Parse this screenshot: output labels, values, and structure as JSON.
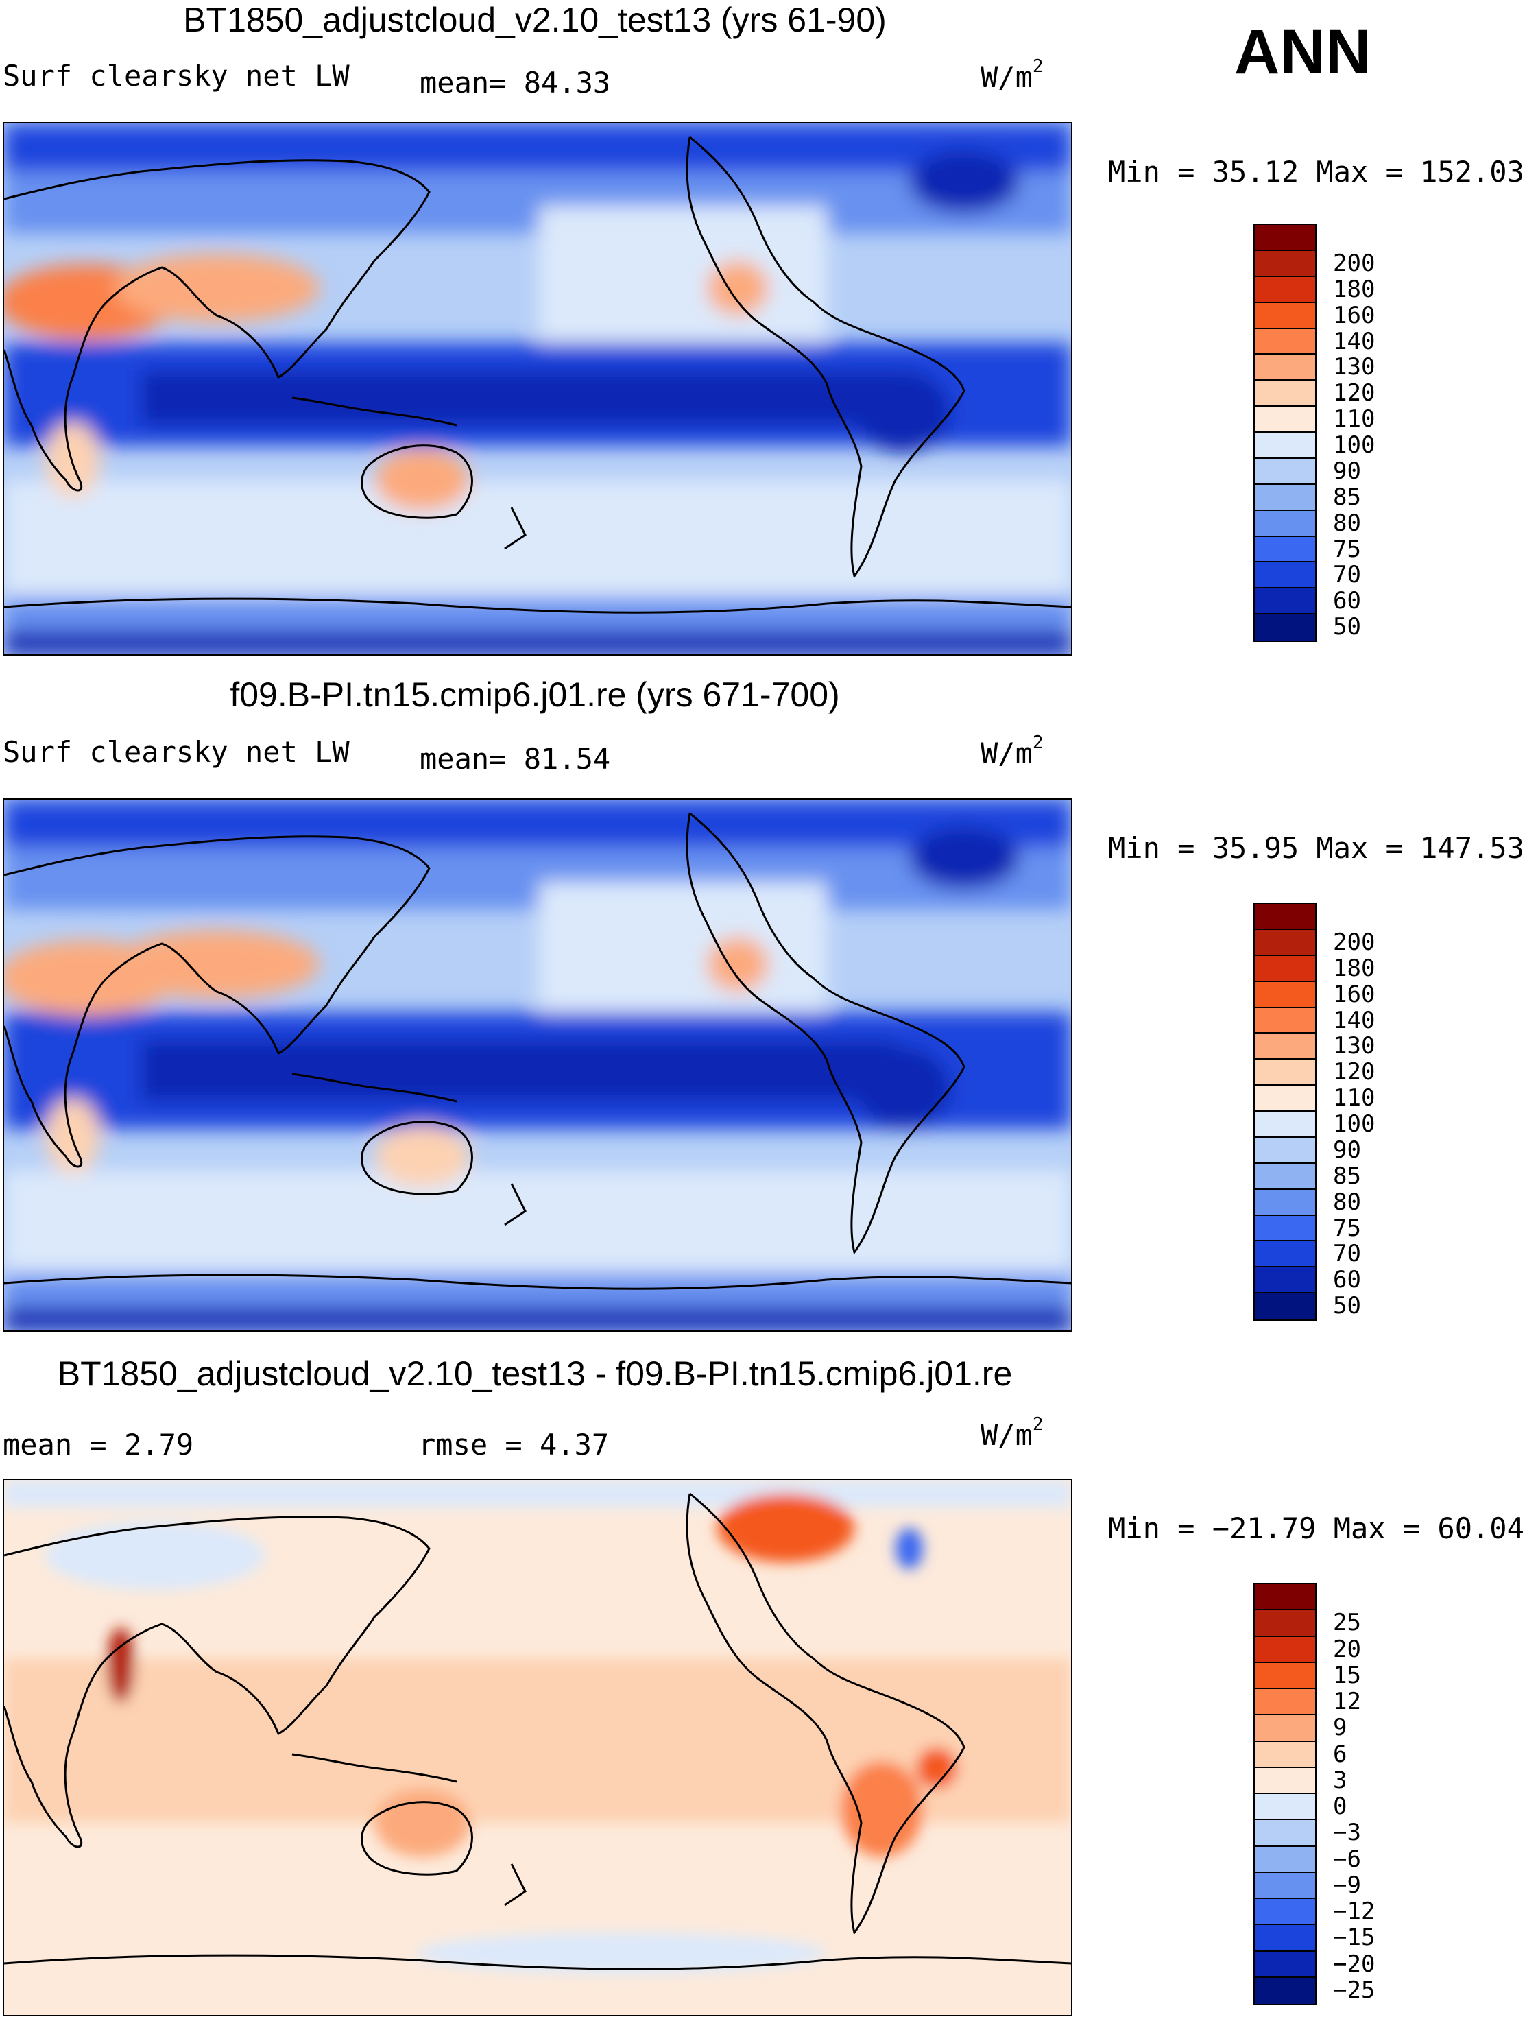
{
  "header": {
    "season": "ANN"
  },
  "panels": [
    {
      "title": "BT1850_adjustcloud_v2.10_test13 (yrs 61-90)",
      "variable": "Surf clearsky net LW",
      "stat_text": "mean=  84.33",
      "units_base": "W/m",
      "units_exp": "2",
      "minmax": "Min =  35.12 Max = 152.03",
      "colorbar": {
        "colors": [
          "#7f0000",
          "#b3200c",
          "#d7300f",
          "#f4591e",
          "#fb8049",
          "#fcaa7d",
          "#fdd2b2",
          "#fdeadb",
          "#dce9fb",
          "#b5cff7",
          "#8fb2f2",
          "#6791f0",
          "#3a68f0",
          "#1b44dd",
          "#0a26b3",
          "#00137e"
        ],
        "labels": [
          "200",
          "180",
          "160",
          "140",
          "130",
          "120",
          "110",
          "100",
          "90",
          "85",
          "80",
          "75",
          "70",
          "60",
          "50"
        ]
      }
    },
    {
      "title": "f09.B-PI.tn15.cmip6.j01.re (yrs 671-700)",
      "variable": "Surf clearsky net LW",
      "stat_text": "mean=  81.54",
      "units_base": "W/m",
      "units_exp": "2",
      "minmax": "Min =  35.95 Max = 147.53",
      "colorbar": {
        "colors": [
          "#7f0000",
          "#b3200c",
          "#d7300f",
          "#f4591e",
          "#fb8049",
          "#fcaa7d",
          "#fdd2b2",
          "#fdeadb",
          "#dce9fb",
          "#b5cff7",
          "#8fb2f2",
          "#6791f0",
          "#3a68f0",
          "#1b44dd",
          "#0a26b3",
          "#00137e"
        ],
        "labels": [
          "200",
          "180",
          "160",
          "140",
          "130",
          "120",
          "110",
          "100",
          "90",
          "85",
          "80",
          "75",
          "70",
          "60",
          "50"
        ]
      }
    },
    {
      "title": "BT1850_adjustcloud_v2.10_test13 - f09.B-PI.tn15.cmip6.j01.re",
      "variable": "mean =   2.79",
      "stat_text": "rmse =   4.37",
      "units_base": "W/m",
      "units_exp": "2",
      "minmax": "Min = −21.79 Max =  60.04",
      "colorbar": {
        "colors": [
          "#7f0000",
          "#b3200c",
          "#d7300f",
          "#f4591e",
          "#fb8049",
          "#fcaa7d",
          "#fdd2b2",
          "#fdeadb",
          "#dce9fb",
          "#b5cff7",
          "#8fb2f2",
          "#6791f0",
          "#3a68f0",
          "#1b44dd",
          "#0a26b3",
          "#00137e"
        ],
        "labels": [
          "25",
          "20",
          "15",
          "12",
          "9",
          "6",
          "3",
          "0",
          "−3",
          "−6",
          "−9",
          "−12",
          "−15",
          "−20",
          "−25"
        ]
      }
    }
  ]
}
